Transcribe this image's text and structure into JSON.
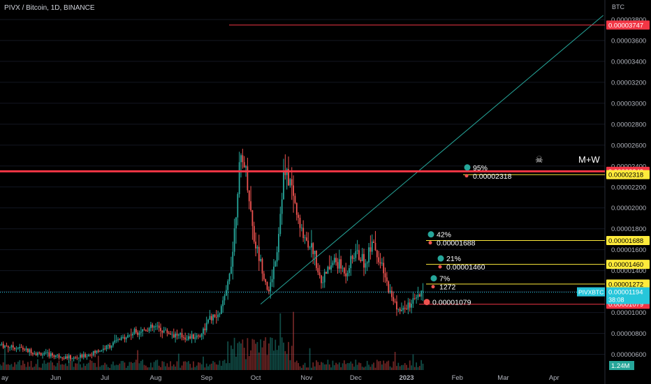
{
  "header": {
    "title": "PIVX / Bitcoin, 1D, BINANCE"
  },
  "chart_data": {
    "type": "candlestick",
    "title": "PIVX / Bitcoin, 1D, BINANCE",
    "y_unit": "BTC",
    "ylim": [
      4.5e-06,
      3.84e-05
    ],
    "xlim": [
      "2022-04-28",
      "2023-05-02"
    ],
    "x_ticks": [
      {
        "label": "ay",
        "date": "2022-05-01"
      },
      {
        "label": "Jun",
        "date": "2022-06-01"
      },
      {
        "label": "Jul",
        "date": "2022-07-01"
      },
      {
        "label": "Aug",
        "date": "2022-08-01"
      },
      {
        "label": "Sep",
        "date": "2022-09-01"
      },
      {
        "label": "Oct",
        "date": "2022-10-01"
      },
      {
        "label": "Nov",
        "date": "2022-11-01"
      },
      {
        "label": "Dec",
        "date": "2022-12-01"
      },
      {
        "label": "2023",
        "date": "2023-01-01"
      },
      {
        "label": "Feb",
        "date": "2023-02-01"
      },
      {
        "label": "Mar",
        "date": "2023-03-01"
      },
      {
        "label": "Apr",
        "date": "2023-04-01"
      }
    ],
    "y_ticks": [
      "0.00000600",
      "0.00000800",
      "0.00001000",
      "0.00001200",
      "0.00001400",
      "0.00001600",
      "0.00001800",
      "0.00002000",
      "0.00002200",
      "0.00002400",
      "0.00002600",
      "0.00002800",
      "0.00003000",
      "0.00003200",
      "0.00003400",
      "0.00003600",
      "0.00003800"
    ],
    "closes": [
      {
        "date": "2022-04-28",
        "close": 6.9e-06
      },
      {
        "date": "2022-05-10",
        "close": 6.6e-06
      },
      {
        "date": "2022-05-20",
        "close": 6.1e-06
      },
      {
        "date": "2022-06-01",
        "close": 5.9e-06
      },
      {
        "date": "2022-06-12",
        "close": 5.6e-06
      },
      {
        "date": "2022-06-22",
        "close": 6e-06
      },
      {
        "date": "2022-07-01",
        "close": 6.6e-06
      },
      {
        "date": "2022-07-10",
        "close": 7.4e-06
      },
      {
        "date": "2022-07-20",
        "close": 8.2e-06
      },
      {
        "date": "2022-08-01",
        "close": 8.6e-06
      },
      {
        "date": "2022-08-10",
        "close": 8e-06
      },
      {
        "date": "2022-08-20",
        "close": 7.6e-06
      },
      {
        "date": "2022-08-28",
        "close": 7.8e-06
      },
      {
        "date": "2022-09-03",
        "close": 9.4e-06
      },
      {
        "date": "2022-09-08",
        "close": 9.6e-06
      },
      {
        "date": "2022-09-13",
        "close": 1.18e-05
      },
      {
        "date": "2022-09-17",
        "close": 1.6e-05
      },
      {
        "date": "2022-09-21",
        "close": 2.38e-05
      },
      {
        "date": "2022-09-24",
        "close": 2.45e-05
      },
      {
        "date": "2022-09-27",
        "close": 2.1e-05
      },
      {
        "date": "2022-09-30",
        "close": 1.7e-05
      },
      {
        "date": "2022-10-04",
        "close": 1.48e-05
      },
      {
        "date": "2022-10-09",
        "close": 1.18e-05
      },
      {
        "date": "2022-10-14",
        "close": 1.6e-05
      },
      {
        "date": "2022-10-18",
        "close": 2.32e-05
      },
      {
        "date": "2022-10-22",
        "close": 2.26e-05
      },
      {
        "date": "2022-10-28",
        "close": 1.8e-05
      },
      {
        "date": "2022-11-05",
        "close": 1.6e-05
      },
      {
        "date": "2022-11-10",
        "close": 1.3e-05
      },
      {
        "date": "2022-11-18",
        "close": 1.5e-05
      },
      {
        "date": "2022-11-25",
        "close": 1.38e-05
      },
      {
        "date": "2022-12-01",
        "close": 1.58e-05
      },
      {
        "date": "2022-12-07",
        "close": 1.46e-05
      },
      {
        "date": "2022-12-11",
        "close": 1.72e-05
      },
      {
        "date": "2022-12-16",
        "close": 1.46e-05
      },
      {
        "date": "2022-12-22",
        "close": 1.18e-05
      },
      {
        "date": "2022-12-28",
        "close": 1e-05
      },
      {
        "date": "2023-01-01",
        "close": 1.05e-05
      },
      {
        "date": "2023-01-05",
        "close": 1.1e-05
      },
      {
        "date": "2023-01-08",
        "close": 1.14e-05
      },
      {
        "date": "2023-01-11",
        "close": 1.19e-05
      }
    ],
    "volume_label": "1.24M",
    "levels": [
      {
        "value": 3.747e-05,
        "label": "0.00003747",
        "color": "#f23645"
      },
      {
        "value": 2.349e-05,
        "label": "0.00002349",
        "color": "#f23645"
      },
      {
        "value": 2.318e-05,
        "label": "0.00002318",
        "color": "#ffeb3b"
      },
      {
        "value": 1.688e-05,
        "label": "0.00001688",
        "color": "#ffeb3b"
      },
      {
        "value": 1.46e-05,
        "label": "0.00001460",
        "color": "#ffeb3b"
      },
      {
        "value": 1.272e-05,
        "label": "0.00001272",
        "color": "#ffeb3b"
      },
      {
        "value": 1.079e-05,
        "label": "0.00001079",
        "color": "#f23645"
      }
    ],
    "current_price": {
      "symbol": "PIVXBTC",
      "value": 1.194e-05,
      "label": "0.00001194",
      "countdown": "38:08",
      "color": "#26c6da"
    },
    "trendline": {
      "from": {
        "date": "2022-10-04",
        "value": 1.08e-05
      },
      "to": {
        "date": "2023-05-01",
        "value": 3.84e-05
      },
      "color": "#26a69a"
    },
    "targets": [
      {
        "percent": "95%",
        "price": "0.00002318",
        "anchor_value": 2.36e-05
      },
      {
        "percent": "42%",
        "price": "0.00001688",
        "anchor_value": 1.72e-05
      },
      {
        "percent": "21%",
        "price": "0.00001460",
        "anchor_value": 1.49e-05
      },
      {
        "percent": "7%",
        "price": "1272",
        "anchor_value": 1.3e-05
      }
    ],
    "stop": {
      "price": "0.00001079",
      "value": 1.1e-05
    },
    "annotation": {
      "text": "M+W",
      "icon": "skull-crossbones-icon"
    }
  },
  "colors": {
    "up": "#26a69a",
    "down": "#ef5350",
    "bg": "#000000",
    "grid": "#131722",
    "axis_text": "#b2b5be"
  }
}
